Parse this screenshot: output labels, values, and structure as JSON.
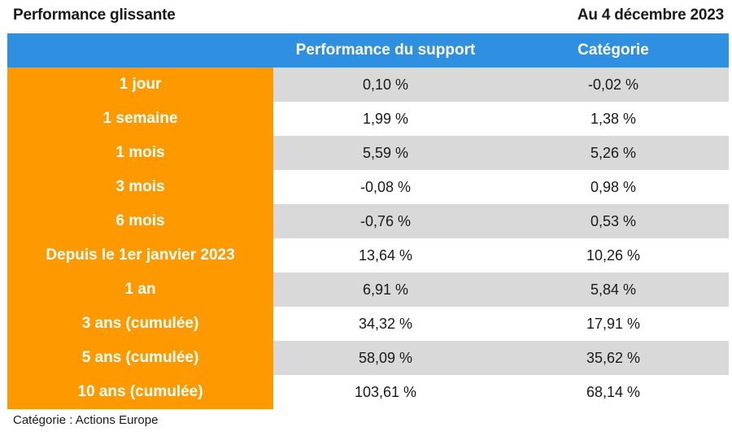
{
  "header": {
    "title": "Performance glissante",
    "date": "Au 4 décembre 2023"
  },
  "chart_data": {
    "type": "table",
    "columns": [
      "",
      "Performance du support",
      "Catégorie"
    ],
    "rows": [
      {
        "label": "1 jour",
        "support": "0,10 %",
        "categorie": "-0,02 %"
      },
      {
        "label": "1 semaine",
        "support": "1,99 %",
        "categorie": "1,38 %"
      },
      {
        "label": "1 mois",
        "support": "5,59 %",
        "categorie": "5,26 %"
      },
      {
        "label": "3 mois",
        "support": "-0,08 %",
        "categorie": "0,98 %"
      },
      {
        "label": "6 mois",
        "support": "-0,76 %",
        "categorie": "0,53 %"
      },
      {
        "label": "Depuis le 1er janvier 2023",
        "support": "13,64 %",
        "categorie": "10,26 %"
      },
      {
        "label": "1 an",
        "support": "6,91 %",
        "categorie": "5,84 %"
      },
      {
        "label": "3 ans (cumulée)",
        "support": "34,32 %",
        "categorie": "17,91 %"
      },
      {
        "label": "5 ans (cumulée)",
        "support": "58,09 %",
        "categorie": "35,62 %"
      },
      {
        "label": "10 ans (cumulée)",
        "support": "103,61 %",
        "categorie": "68,14 %"
      }
    ]
  },
  "footnote": "Catégorie : Actions Europe",
  "colors": {
    "header_blue": "#2f8fe0",
    "label_orange": "#ff9900",
    "stripe_grey": "#d9d9d9"
  }
}
